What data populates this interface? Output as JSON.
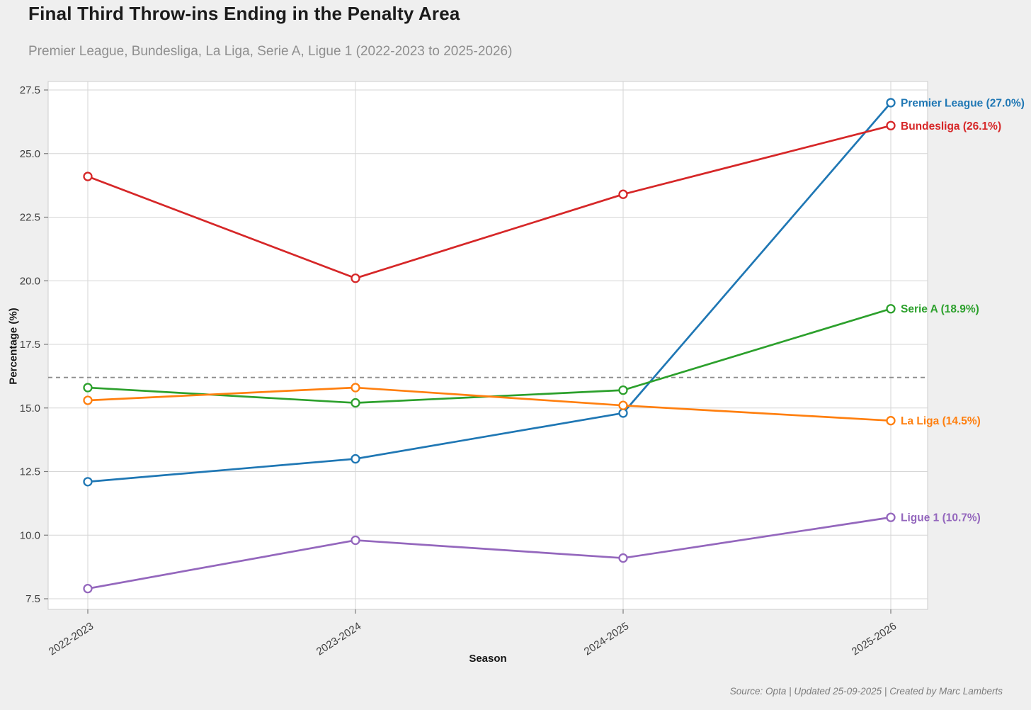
{
  "header": {
    "title": "Final Third Throw-ins Ending in the Penalty Area",
    "subtitle": "Premier League, Bundesliga, La Liga, Serie A, Ligue 1 (2022-2023 to 2025-2026)"
  },
  "chart_data": {
    "type": "line",
    "title": "Final Third Throw-ins Ending in the Penalty Area",
    "subtitle": "Premier League, Bundesliga, La Liga, Serie A, Ligue 1 (2022-2023 to 2025-2026)",
    "categories": [
      "2022-2023",
      "2023-2024",
      "2024-2025",
      "2025-2026"
    ],
    "series": [
      {
        "name": "Premier League",
        "color": "#1f77b4",
        "values": [
          12.1,
          13.0,
          14.8,
          27.0
        ],
        "end_label": "Premier League (27.0%)"
      },
      {
        "name": "Bundesliga",
        "color": "#d62728",
        "values": [
          24.1,
          20.1,
          23.4,
          26.1
        ],
        "end_label": "Bundesliga (26.1%)"
      },
      {
        "name": "Serie A",
        "color": "#2ca02c",
        "values": [
          15.8,
          15.2,
          15.7,
          18.9
        ],
        "end_label": "Serie A (18.9%)"
      },
      {
        "name": "La Liga",
        "color": "#ff7f0e",
        "values": [
          15.3,
          15.8,
          15.1,
          14.5
        ],
        "end_label": "La Liga (14.5%)"
      },
      {
        "name": "Ligue 1",
        "color": "#9467bd",
        "values": [
          7.9,
          9.8,
          9.1,
          10.7
        ],
        "end_label": "Ligue 1 (10.7%)"
      }
    ],
    "reference_line": {
      "value": 16.2,
      "style": "dashed",
      "color": "#8c8c8c"
    },
    "xlabel": "Season",
    "ylabel": "Percentage (%)",
    "y_ticks": [
      27.5,
      25.0,
      22.5,
      20.0,
      17.5,
      15.0,
      12.5,
      10.0,
      7.5
    ],
    "ylim": [
      6.9,
      27.8
    ],
    "grid": true,
    "legend_position": "end-of-line-labels",
    "colors": {
      "figure_background": "#efefef",
      "panel_background": "#ffffff",
      "gridline": "#d6d6d6",
      "axis_text": "#404040",
      "title_text": "#1b1b1b",
      "subtitle_text": "#8e8e8e"
    }
  },
  "footer": {
    "source": "Source: Opta | Updated 25-09-2025 | Created by Marc Lamberts"
  }
}
